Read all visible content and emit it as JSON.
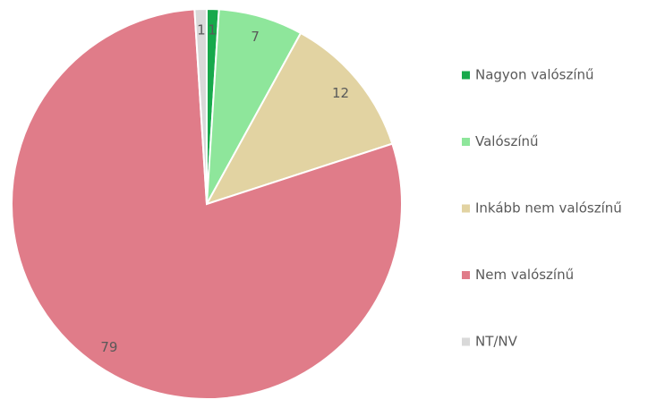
{
  "chart_data": {
    "type": "pie",
    "categories": [
      "Nagyon valószínű",
      "Valószínű",
      "Inkább nem valószínű",
      "Nem valószínű",
      "NT/NV"
    ],
    "values": [
      1,
      7,
      12,
      79,
      1
    ],
    "colors": [
      "#17a94b",
      "#8ee69b",
      "#e2d3a2",
      "#e07c89",
      "#d9d9d9"
    ],
    "legend": "right"
  }
}
